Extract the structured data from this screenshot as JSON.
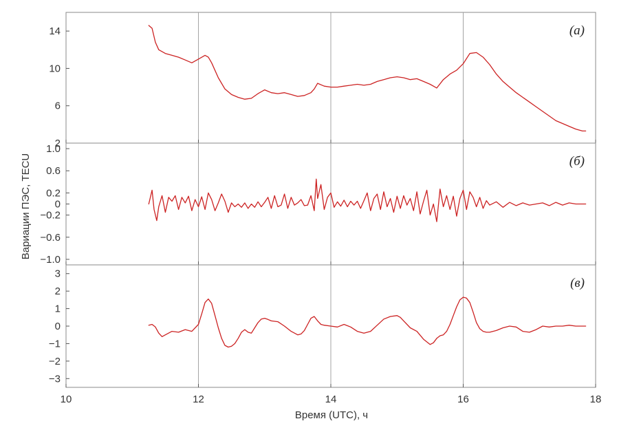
{
  "chart_data": {
    "type": "line",
    "ylabel": "Вариации ПЭС, TECU",
    "xlabel": "Время (UTC), ч",
    "xlim": [
      10,
      18
    ],
    "x_ticks": [
      10,
      12,
      14,
      16,
      18
    ],
    "x_tick_labels": [
      "10",
      "12",
      "14",
      "16",
      "18"
    ],
    "grid": "vertical lines at 12, 14, 16",
    "line_color": "#cc2222",
    "panels": [
      {
        "label": "(а)",
        "ylim": [
          2,
          16
        ],
        "y_ticks": [
          2,
          6,
          10,
          14
        ],
        "y_tick_labels": [
          "2",
          "6",
          "10",
          "14"
        ],
        "series": {
          "x": [
            11.25,
            11.3,
            11.35,
            11.4,
            11.5,
            11.6,
            11.7,
            11.8,
            11.9,
            12.0,
            12.1,
            12.15,
            12.2,
            12.3,
            12.4,
            12.5,
            12.6,
            12.7,
            12.8,
            12.9,
            13.0,
            13.1,
            13.2,
            13.3,
            13.4,
            13.5,
            13.6,
            13.7,
            13.75,
            13.8,
            13.9,
            14.0,
            14.1,
            14.2,
            14.3,
            14.4,
            14.5,
            14.6,
            14.7,
            14.8,
            14.9,
            15.0,
            15.1,
            15.2,
            15.3,
            15.4,
            15.5,
            15.6,
            15.7,
            15.8,
            15.9,
            16.0,
            16.1,
            16.2,
            16.3,
            16.4,
            16.5,
            16.6,
            16.7,
            16.8,
            16.9,
            17.0,
            17.1,
            17.2,
            17.3,
            17.4,
            17.5,
            17.6,
            17.7,
            17.8,
            17.85
          ],
          "y": [
            14.6,
            14.3,
            12.8,
            12.0,
            11.6,
            11.4,
            11.2,
            10.9,
            10.6,
            11.0,
            11.4,
            11.2,
            10.6,
            9.0,
            7.8,
            7.2,
            6.9,
            6.7,
            6.8,
            7.3,
            7.7,
            7.4,
            7.3,
            7.4,
            7.2,
            7.0,
            7.1,
            7.4,
            7.8,
            8.4,
            8.1,
            8.0,
            8.0,
            8.1,
            8.2,
            8.3,
            8.2,
            8.3,
            8.6,
            8.8,
            9.0,
            9.1,
            9.0,
            8.8,
            8.9,
            8.6,
            8.3,
            7.9,
            8.8,
            9.4,
            9.8,
            10.5,
            11.6,
            11.7,
            11.2,
            10.4,
            9.4,
            8.6,
            8.0,
            7.4,
            6.9,
            6.4,
            5.9,
            5.4,
            4.9,
            4.4,
            4.1,
            3.8,
            3.5,
            3.3,
            3.3
          ]
        }
      },
      {
        "label": "(б)",
        "ylim": [
          -1.1,
          1.1
        ],
        "y_ticks": [
          -1.0,
          -0.6,
          -0.2,
          0,
          0.2,
          0.6,
          1.0
        ],
        "y_tick_labels": [
          "−1.0",
          "−0.6",
          "−0.2",
          "0",
          "0.2",
          "0.6",
          "1.0"
        ],
        "series": {
          "x": [
            11.25,
            11.3,
            11.33,
            11.37,
            11.4,
            11.45,
            11.5,
            11.55,
            11.6,
            11.65,
            11.7,
            11.75,
            11.8,
            11.85,
            11.9,
            11.95,
            12.0,
            12.05,
            12.1,
            12.15,
            12.2,
            12.25,
            12.3,
            12.35,
            12.4,
            12.45,
            12.5,
            12.55,
            12.6,
            12.65,
            12.7,
            12.75,
            12.8,
            12.85,
            12.9,
            12.95,
            13.0,
            13.05,
            13.1,
            13.15,
            13.2,
            13.25,
            13.3,
            13.35,
            13.4,
            13.45,
            13.5,
            13.55,
            13.6,
            13.65,
            13.7,
            13.75,
            13.78,
            13.8,
            13.85,
            13.9,
            13.95,
            14.0,
            14.05,
            14.1,
            14.15,
            14.2,
            14.25,
            14.3,
            14.35,
            14.4,
            14.45,
            14.5,
            14.55,
            14.6,
            14.65,
            14.7,
            14.75,
            14.8,
            14.85,
            14.9,
            14.95,
            15.0,
            15.05,
            15.1,
            15.15,
            15.2,
            15.25,
            15.3,
            15.35,
            15.4,
            15.45,
            15.5,
            15.55,
            15.6,
            15.65,
            15.7,
            15.75,
            15.8,
            15.85,
            15.9,
            15.95,
            16.0,
            16.05,
            16.1,
            16.15,
            16.2,
            16.25,
            16.3,
            16.35,
            16.4,
            16.5,
            16.6,
            16.7,
            16.8,
            16.9,
            17.0,
            17.1,
            17.2,
            17.3,
            17.4,
            17.5,
            17.6,
            17.7,
            17.8,
            17.85
          ],
          "y": [
            0.0,
            0.25,
            -0.1,
            -0.3,
            -0.05,
            0.15,
            -0.15,
            0.12,
            0.05,
            0.15,
            -0.1,
            0.12,
            0.02,
            0.14,
            -0.12,
            0.08,
            -0.05,
            0.13,
            -0.1,
            0.2,
            0.08,
            -0.12,
            0.02,
            0.18,
            0.05,
            -0.15,
            0.02,
            -0.05,
            0.0,
            -0.06,
            0.02,
            -0.08,
            0.0,
            -0.06,
            0.04,
            -0.05,
            0.03,
            0.12,
            -0.08,
            0.15,
            -0.05,
            -0.02,
            0.18,
            -0.08,
            0.12,
            -0.02,
            0.02,
            0.08,
            -0.03,
            -0.02,
            0.15,
            -0.12,
            0.45,
            0.1,
            0.35,
            -0.1,
            0.12,
            0.2,
            -0.06,
            0.04,
            -0.04,
            0.07,
            -0.05,
            0.05,
            -0.02,
            0.05,
            -0.08,
            0.06,
            0.2,
            -0.12,
            0.1,
            0.18,
            -0.1,
            0.22,
            -0.05,
            0.1,
            -0.15,
            0.14,
            -0.08,
            0.15,
            -0.02,
            0.1,
            -0.12,
            0.22,
            -0.18,
            0.05,
            0.25,
            -0.2,
            0.0,
            -0.32,
            0.27,
            -0.05,
            0.15,
            -0.1,
            0.14,
            -0.22,
            0.1,
            0.25,
            -0.1,
            0.22,
            0.12,
            -0.05,
            0.12,
            -0.08,
            0.06,
            -0.02,
            0.04,
            -0.06,
            0.03,
            -0.03,
            0.02,
            -0.02,
            0.0,
            0.02,
            -0.03,
            0.03,
            -0.02,
            0.02,
            0.0,
            0.0,
            0.0
          ]
        }
      },
      {
        "label": "(в)",
        "ylim": [
          -3.5,
          3.5
        ],
        "y_ticks": [
          -3,
          -2,
          -1,
          0,
          1,
          2,
          3
        ],
        "y_tick_labels": [
          "−3",
          "−2",
          "−1",
          "0",
          "1",
          "2",
          "3"
        ],
        "series": {
          "x": [
            11.25,
            11.3,
            11.35,
            11.4,
            11.45,
            11.5,
            11.6,
            11.7,
            11.8,
            11.9,
            12.0,
            12.05,
            12.1,
            12.15,
            12.2,
            12.25,
            12.3,
            12.35,
            12.4,
            12.45,
            12.5,
            12.55,
            12.6,
            12.65,
            12.7,
            12.75,
            12.8,
            12.85,
            12.9,
            12.95,
            13.0,
            13.05,
            13.1,
            13.2,
            13.3,
            13.4,
            13.5,
            13.55,
            13.6,
            13.65,
            13.7,
            13.75,
            13.8,
            13.85,
            13.9,
            14.0,
            14.1,
            14.2,
            14.3,
            14.4,
            14.5,
            14.6,
            14.7,
            14.8,
            14.9,
            15.0,
            15.05,
            15.1,
            15.2,
            15.3,
            15.4,
            15.5,
            15.55,
            15.6,
            15.65,
            15.7,
            15.75,
            15.8,
            15.85,
            15.9,
            15.95,
            16.0,
            16.05,
            16.1,
            16.15,
            16.2,
            16.25,
            16.3,
            16.35,
            16.4,
            16.45,
            16.5,
            16.6,
            16.7,
            16.8,
            16.9,
            17.0,
            17.1,
            17.2,
            17.3,
            17.4,
            17.5,
            17.6,
            17.7,
            17.8,
            17.85
          ],
          "y": [
            0.05,
            0.1,
            -0.05,
            -0.4,
            -0.6,
            -0.5,
            -0.3,
            -0.35,
            -0.2,
            -0.3,
            0.1,
            0.7,
            1.35,
            1.55,
            1.3,
            0.6,
            -0.1,
            -0.7,
            -1.1,
            -1.2,
            -1.15,
            -1.0,
            -0.7,
            -0.35,
            -0.2,
            -0.35,
            -0.4,
            -0.1,
            0.2,
            0.4,
            0.45,
            0.38,
            0.3,
            0.25,
            0.0,
            -0.3,
            -0.5,
            -0.45,
            -0.25,
            0.1,
            0.45,
            0.55,
            0.3,
            0.1,
            0.05,
            0.0,
            -0.05,
            0.1,
            -0.05,
            -0.3,
            -0.4,
            -0.3,
            0.05,
            0.4,
            0.55,
            0.6,
            0.5,
            0.3,
            -0.1,
            -0.3,
            -0.75,
            -1.05,
            -0.95,
            -0.7,
            -0.55,
            -0.5,
            -0.3,
            0.1,
            0.6,
            1.1,
            1.5,
            1.65,
            1.6,
            1.35,
            0.8,
            0.2,
            -0.15,
            -0.3,
            -0.35,
            -0.35,
            -0.3,
            -0.25,
            -0.1,
            0.0,
            -0.05,
            -0.3,
            -0.35,
            -0.2,
            0.0,
            -0.05,
            0.0,
            0.0,
            0.05,
            0.0,
            0.0,
            0.0
          ]
        }
      }
    ]
  }
}
